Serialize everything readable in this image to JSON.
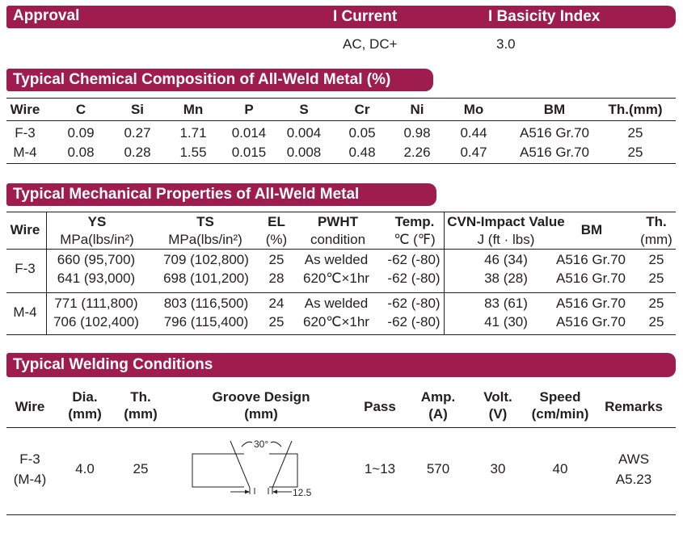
{
  "approval": {
    "title": "Approval",
    "current_header": "I Current",
    "basicity_header": "I Basicity Index",
    "current": "AC, DC+",
    "basicity": "3.0"
  },
  "chemical": {
    "title": "Typical Chemical Composition of All-Weld Metal (%)",
    "headers": [
      "Wire",
      "C",
      "Si",
      "Mn",
      "P",
      "S",
      "Cr",
      "Ni",
      "Mo",
      "BM",
      "Th.(mm)"
    ],
    "rows": [
      [
        "F-3",
        "0.09",
        "0.27",
        "1.71",
        "0.014",
        "0.004",
        "0.05",
        "0.98",
        "0.44",
        "A516 Gr.70",
        "25"
      ],
      [
        "M-4",
        "0.08",
        "0.28",
        "1.55",
        "0.015",
        "0.008",
        "0.48",
        "2.26",
        "0.47",
        "A516 Gr.70",
        "25"
      ]
    ]
  },
  "mechanical": {
    "title": "Typical Mechanical Properties of All-Weld Metal",
    "headers": {
      "wire": "Wire",
      "ys": [
        "YS",
        "MPa(lbs/in²)"
      ],
      "ts": [
        "TS",
        "MPa(lbs/in²)"
      ],
      "el": [
        "EL",
        "(%)"
      ],
      "pwht": [
        "PWHT",
        "condition"
      ],
      "temp": [
        "Temp.",
        "℃ (℉)"
      ],
      "cvn": [
        "CVN-Impact Value",
        "J (ft · lbs)"
      ],
      "bm": "BM",
      "th": [
        "Th.",
        "(mm)"
      ]
    },
    "groups": [
      {
        "wire": "F-3",
        "rows": [
          [
            "660 (95,700)",
            "709 (102,800)",
            "25",
            "As welded",
            "-62 (-80)",
            "46 (34)",
            "A516 Gr.70",
            "25"
          ],
          [
            "641 (93,000)",
            "698 (101,200)",
            "28",
            "620℃×1hr",
            "-62 (-80)",
            "38 (28)",
            "A516 Gr.70",
            "25"
          ]
        ]
      },
      {
        "wire": "M-4",
        "rows": [
          [
            "771 (111,800)",
            "803 (116,500)",
            "24",
            "As welded",
            "-62 (-80)",
            "83 (61)",
            "A516 Gr.70",
            "25"
          ],
          [
            "706 (102,400)",
            "796 (115,400)",
            "25",
            "620℃×1hr",
            "-62 (-80)",
            "41 (30)",
            "A516 Gr.70",
            "25"
          ]
        ]
      }
    ]
  },
  "welding": {
    "title": "Typical Welding Conditions",
    "headers": {
      "wire": "Wire",
      "dia": [
        "Dia.",
        "(mm)"
      ],
      "th": [
        "Th.",
        "(mm)"
      ],
      "groove": [
        "Groove Design",
        "(mm)"
      ],
      "pass": "Pass",
      "amp": [
        "Amp.",
        "(A)"
      ],
      "volt": [
        "Volt.",
        "(V)"
      ],
      "speed": [
        "Speed",
        "(cm/min)"
      ],
      "remarks": "Remarks"
    },
    "row": {
      "wire": [
        "F-3",
        "(M-4)"
      ],
      "dia": "4.0",
      "th": "25",
      "pass": "1~13",
      "amp": "570",
      "volt": "30",
      "speed": "40",
      "remarks": [
        "AWS",
        "A5.23"
      ]
    },
    "groove": {
      "angle_label": "30°",
      "gap_label": "12.5"
    }
  }
}
